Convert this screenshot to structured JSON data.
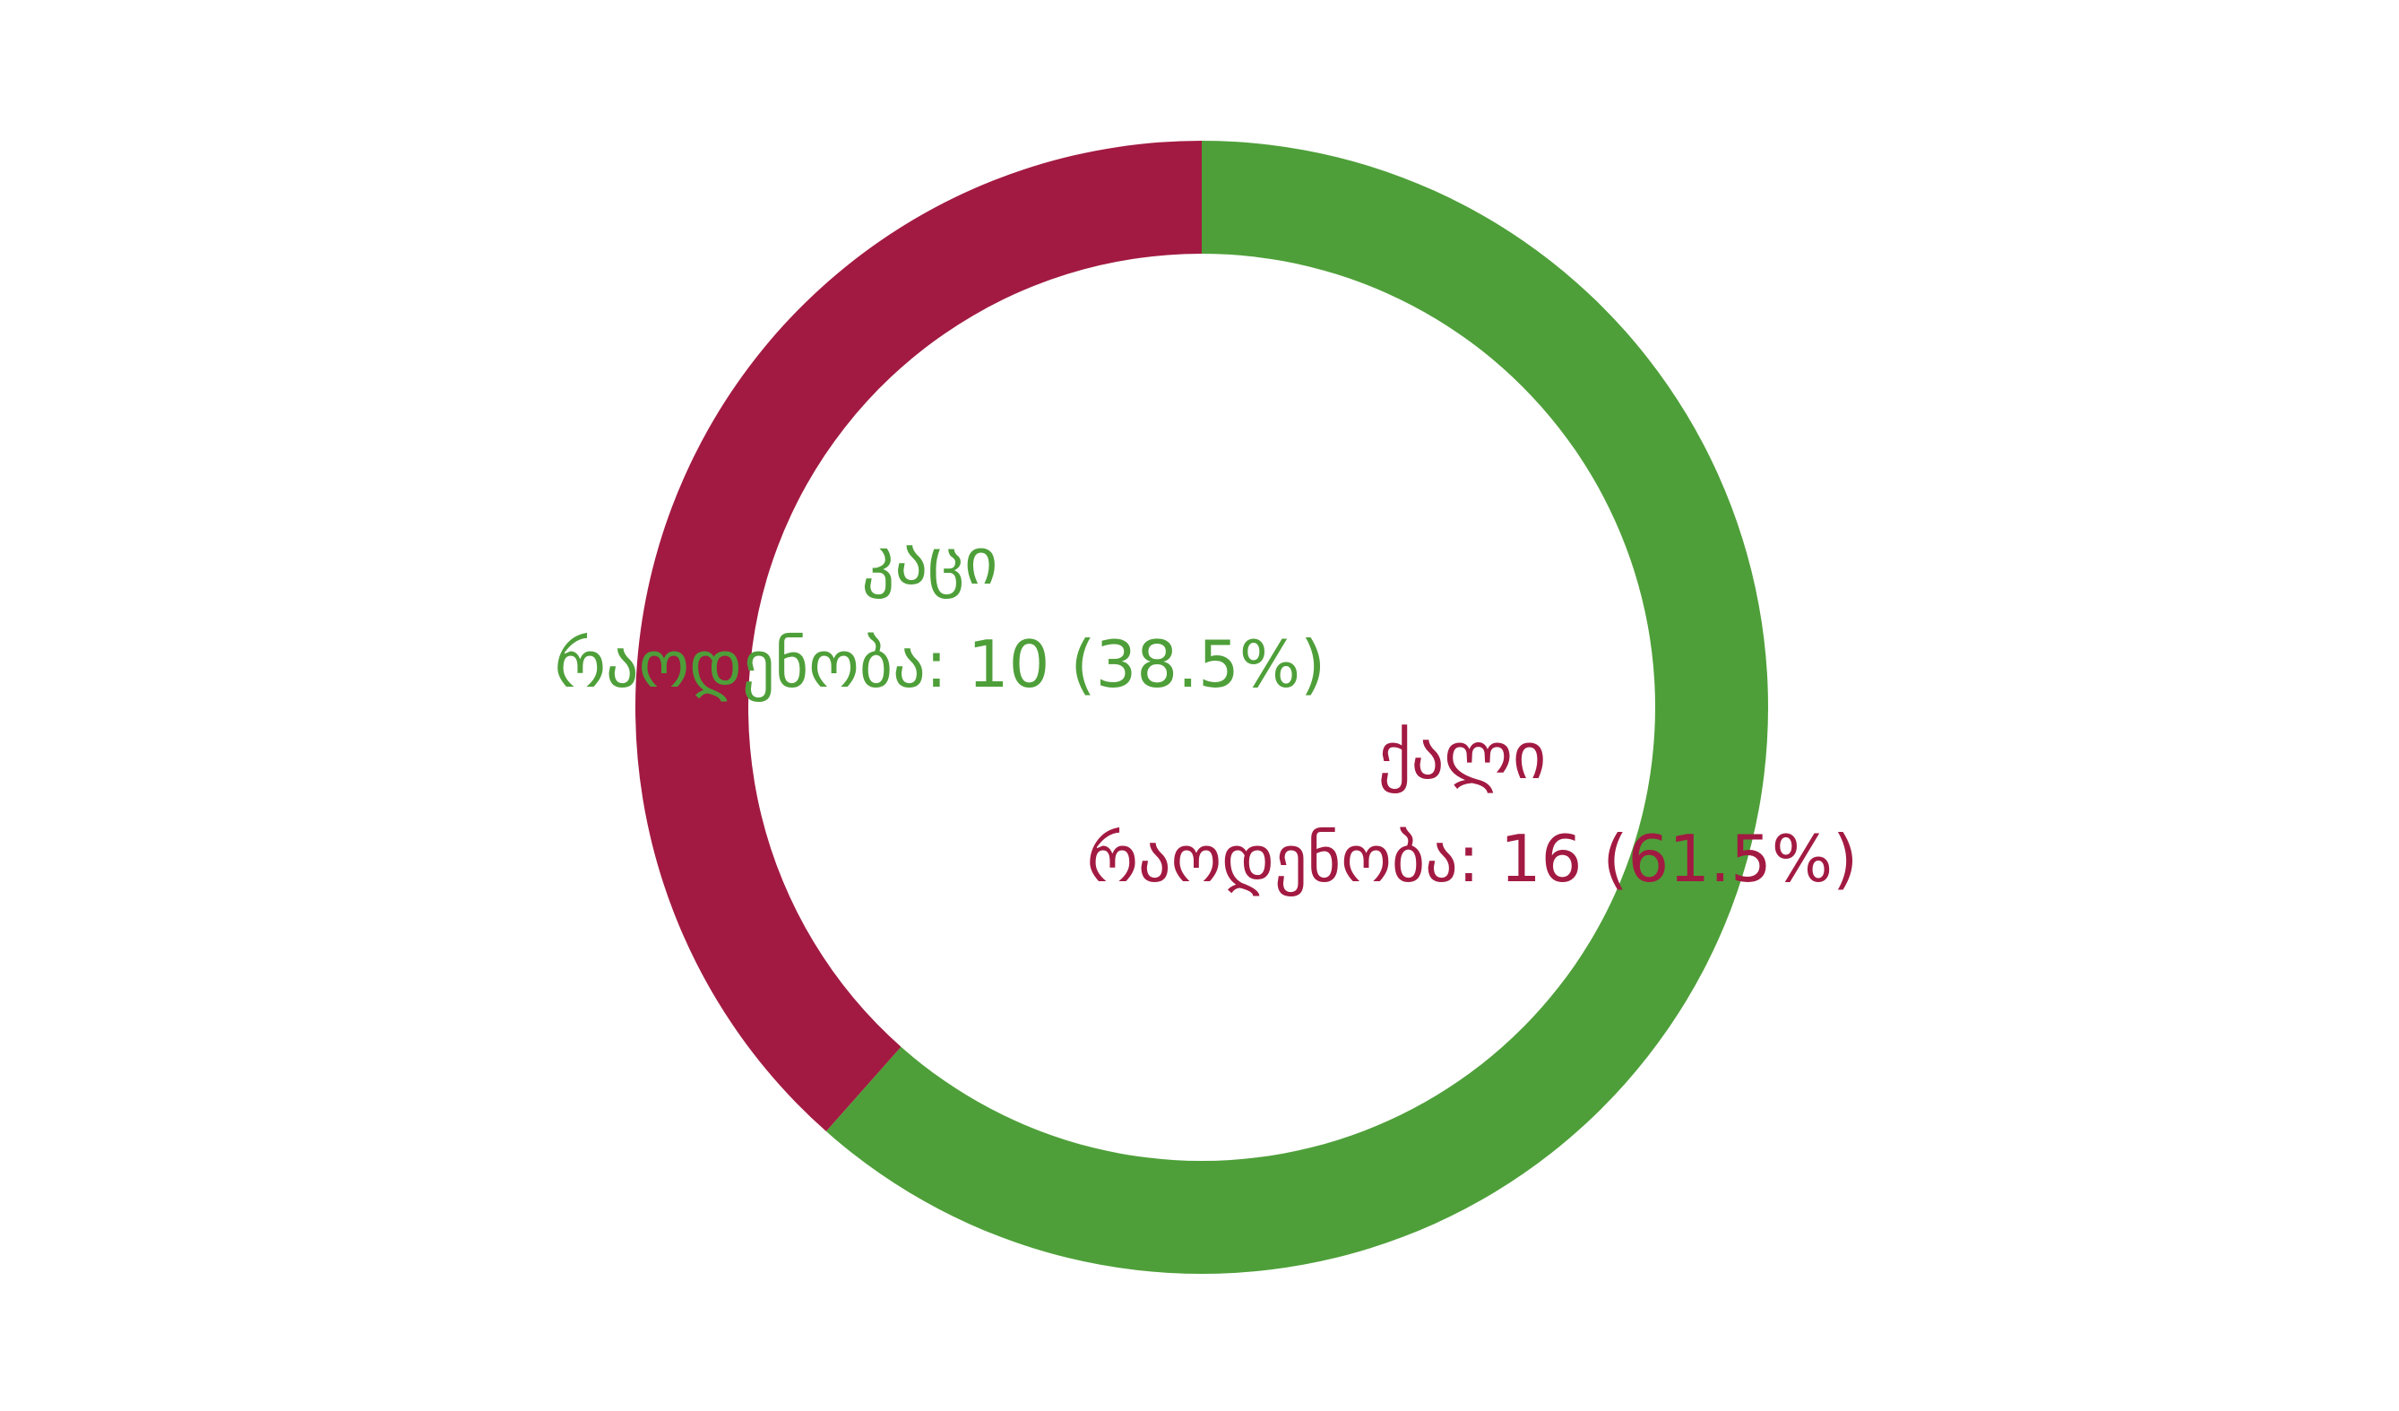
{
  "chart_data": {
    "type": "pie",
    "variant": "donut",
    "start": "top",
    "direction": "clockwise",
    "slices": [
      {
        "name": "ქალი",
        "value": 16,
        "percent": "61.5%",
        "color": "#4e9f39",
        "label_color": "#a21a42",
        "label_line1": "ქალი",
        "label_line2": "რაოდენობა: 16 (61.5%)"
      },
      {
        "name": "კაცი",
        "value": 10,
        "percent": "38.5%",
        "color": "#a21a42",
        "label_color": "#4e9f39",
        "label_line1": "კაცი",
        "label_line2": "რაოდენობა: 10 (38.5%)"
      }
    ]
  }
}
